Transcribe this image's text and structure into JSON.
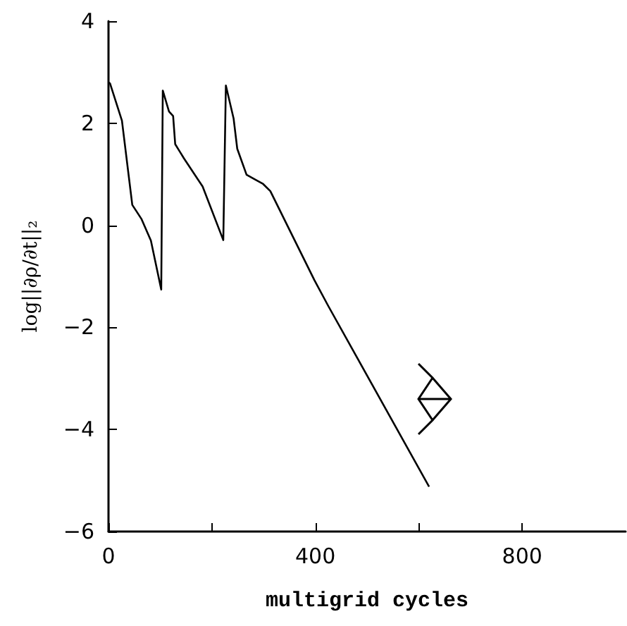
{
  "chart_data": {
    "type": "line",
    "xlabel": "multigrid cycles",
    "ylabel": "log||∂ρ/∂t||₂",
    "x": [
      0,
      3,
      26,
      46,
      64,
      82,
      102,
      105,
      117,
      125,
      129,
      146,
      182,
      222,
      227,
      242,
      249,
      267,
      299,
      313,
      398,
      425,
      620
    ],
    "series": [
      {
        "color": "#000000",
        "values": [
          2.8,
          2.78,
          2.05,
          0.4,
          0.12,
          -0.3,
          -1.26,
          2.64,
          2.23,
          2.14,
          1.59,
          1.31,
          0.76,
          -0.29,
          2.74,
          2.09,
          1.5,
          0.99,
          0.81,
          0.67,
          -1.07,
          -1.58,
          -5.12
        ]
      }
    ],
    "xlim": [
      0,
      1000
    ],
    "xticks": [
      0,
      {
        "value": 200,
        "label": null
      },
      400,
      {
        "value": 600,
        "label": null
      },
      800
    ],
    "ylim": [
      -6,
      4
    ],
    "yticks": [
      -6,
      -4,
      -2,
      0,
      2,
      4
    ],
    "grid": false,
    "marker": "none",
    "line_style": "solid"
  }
}
